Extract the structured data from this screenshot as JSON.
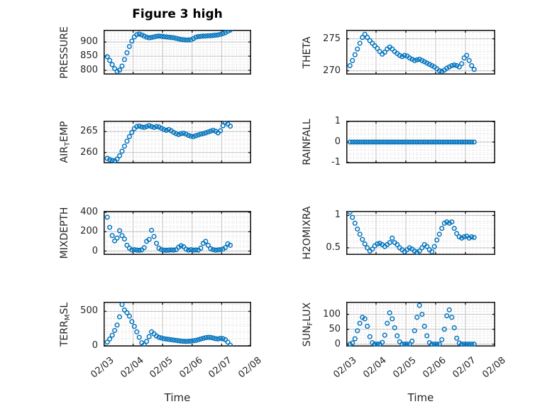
{
  "title": "Figure 3 high",
  "colors": {
    "marker_blue": "#0072BD",
    "axis_frame": "#1a1a1a",
    "text": "#262626",
    "grid_major": "#c2c2c2",
    "grid_minor": "#d4d4d4",
    "background": "#ffffff"
  },
  "chart_data": {
    "type": "scatter",
    "marker": "open-circle",
    "grid": "major-solid-plus-minor-dotted",
    "layout": "4x2-subplot-grid-shared-time-axis",
    "x_axis": {
      "label": "Time",
      "lim_days": [
        0,
        5
      ],
      "tick_days": [
        0,
        1,
        2,
        3,
        4,
        5
      ],
      "tick_labels": [
        "02/03",
        "02/04",
        "02/05",
        "02/06",
        "02/07",
        "02/08"
      ],
      "minor_step_days": 0.125,
      "tick_label_rotation_deg": -40
    },
    "x_days": [
      0.125,
      0.208,
      0.292,
      0.375,
      0.458,
      0.542,
      0.625,
      0.708,
      0.792,
      0.875,
      0.958,
      1.042,
      1.125,
      1.208,
      1.292,
      1.375,
      1.458,
      1.542,
      1.625,
      1.708,
      1.792,
      1.875,
      1.958,
      2.042,
      2.125,
      2.208,
      2.292,
      2.375,
      2.458,
      2.542,
      2.625,
      2.708,
      2.792,
      2.875,
      2.958,
      3.042,
      3.125,
      3.208,
      3.292,
      3.375,
      3.458,
      3.542,
      3.625,
      3.708,
      3.792,
      3.875,
      3.958,
      4.042,
      4.125,
      4.208,
      4.292
    ],
    "plots": [
      {
        "name": "PRESSURE",
        "ylabel": {
          "pre": "PRESSURE",
          "sub": "",
          "post": ""
        },
        "ylim": [
          785,
          943
        ],
        "yticks": [
          800,
          850,
          900
        ],
        "ytick_labels": [
          "800",
          "850",
          "900"
        ],
        "yminor_step": 10,
        "values": [
          848,
          835,
          820,
          806,
          796,
          801,
          815,
          838,
          862,
          884,
          903,
          918,
          926,
          928,
          925,
          921,
          917,
          915,
          916,
          918,
          920,
          921,
          920,
          919,
          918,
          917,
          916,
          915,
          913,
          911,
          909,
          908,
          907,
          907,
          908,
          912,
          917,
          919,
          920,
          921,
          921,
          922,
          922,
          923,
          924,
          925,
          927,
          930,
          933,
          938,
          942
        ]
      },
      {
        "name": "THETA",
        "ylabel": {
          "pre": "THETA",
          "sub": "",
          "post": ""
        },
        "ylim": [
          269.4,
          276.4
        ],
        "yticks": [
          270,
          275
        ],
        "ytick_labels": [
          "270",
          "275"
        ],
        "yminor_step": 1,
        "values": [
          270.8,
          271.6,
          272.5,
          273.4,
          274.3,
          275.2,
          275.7,
          275.2,
          274.7,
          274.3,
          273.9,
          273.5,
          273.0,
          272.6,
          272.9,
          273.4,
          273.7,
          273.4,
          273.0,
          272.7,
          272.4,
          272.2,
          272.4,
          272.3,
          272.0,
          271.8,
          271.6,
          271.7,
          271.8,
          271.6,
          271.4,
          271.2,
          271.0,
          270.8,
          270.6,
          270.3,
          270.0,
          269.9,
          270.1,
          270.4,
          270.6,
          270.8,
          270.9,
          270.8,
          270.6,
          271.1,
          272.0,
          272.4,
          271.6,
          270.8,
          270.2
        ]
      },
      {
        "name": "AIR_TEMP",
        "ylabel": {
          "pre": "AIR",
          "sub": "T",
          "post": "EMP"
        },
        "ylim": [
          257.4,
          267.6
        ],
        "yticks": [
          260,
          265
        ],
        "ytick_labels": [
          "260",
          "265"
        ],
        "yminor_step": 1,
        "values": [
          258.6,
          258.3,
          258.1,
          258.0,
          258.4,
          259.2,
          260.3,
          261.5,
          262.7,
          263.8,
          264.8,
          265.7,
          266.2,
          266.3,
          266.1,
          266.0,
          266.2,
          266.4,
          266.2,
          266.0,
          266.2,
          266.1,
          265.8,
          265.5,
          265.3,
          265.5,
          265.2,
          264.8,
          264.5,
          264.3,
          264.5,
          264.6,
          264.4,
          264.1,
          263.9,
          263.8,
          264.0,
          264.2,
          264.4,
          264.5,
          264.7,
          264.9,
          265.1,
          265.3,
          265.1,
          264.7,
          265.2,
          266.4,
          267.2,
          266.8,
          266.3
        ]
      },
      {
        "name": "RAINFALL",
        "ylabel": {
          "pre": "RAINFALL",
          "sub": "",
          "post": ""
        },
        "ylim": [
          -1.05,
          1.05
        ],
        "yticks": [
          -1,
          0,
          1
        ],
        "ytick_labels": [
          "-1",
          "0",
          "1"
        ],
        "yminor_step": 0.2,
        "values": [
          0,
          0,
          0,
          0,
          0,
          0,
          0,
          0,
          0,
          0,
          0,
          0,
          0,
          0,
          0,
          0,
          0,
          0,
          0,
          0,
          0,
          0,
          0,
          0,
          0,
          0,
          0,
          0,
          0,
          0,
          0,
          0,
          0,
          0,
          0,
          0,
          0,
          0,
          0,
          0,
          0,
          0,
          0,
          0,
          0,
          0,
          0,
          0,
          0,
          0,
          0
        ]
      },
      {
        "name": "MIXDEPTH",
        "ylabel": {
          "pre": "MIXDEPTH",
          "sub": "",
          "post": ""
        },
        "ylim": [
          -40,
          415
        ],
        "yticks": [
          0,
          200,
          400
        ],
        "ytick_labels": [
          "0",
          "200",
          "400"
        ],
        "yminor_step": 50,
        "values": [
          350,
          245,
          160,
          105,
          135,
          210,
          160,
          125,
          60,
          30,
          12,
          15,
          10,
          8,
          12,
          35,
          100,
          120,
          215,
          150,
          80,
          30,
          15,
          10,
          8,
          10,
          12,
          10,
          15,
          40,
          55,
          45,
          20,
          10,
          15,
          10,
          12,
          10,
          30,
          80,
          100,
          60,
          25,
          15,
          10,
          12,
          15,
          20,
          35,
          75,
          60
        ]
      },
      {
        "name": "H2OMIXRA",
        "ylabel": {
          "pre": "H2OMIXRA",
          "sub": "",
          "post": ""
        },
        "ylim": [
          0.39,
          1.07
        ],
        "yticks": [
          0.5,
          1
        ],
        "ytick_labels": [
          "0.5",
          "1"
        ],
        "yminor_step": 0.1,
        "values": [
          1.05,
          0.97,
          0.88,
          0.79,
          0.71,
          0.63,
          0.56,
          0.5,
          0.45,
          0.48,
          0.53,
          0.56,
          0.57,
          0.55,
          0.52,
          0.55,
          0.58,
          0.65,
          0.58,
          0.55,
          0.5,
          0.47,
          0.44,
          0.47,
          0.5,
          0.48,
          0.45,
          0.43,
          0.45,
          0.5,
          0.55,
          0.52,
          0.47,
          0.44,
          0.52,
          0.62,
          0.71,
          0.8,
          0.88,
          0.9,
          0.88,
          0.9,
          0.8,
          0.72,
          0.67,
          0.65,
          0.67,
          0.68,
          0.65,
          0.67,
          0.66
        ]
      },
      {
        "name": "TERR_MSL",
        "ylabel": {
          "pre": "TERR",
          "sub": "M",
          "post": "SL"
        },
        "ylim": [
          -15,
          640
        ],
        "yticks": [
          0,
          500
        ],
        "ytick_labels": [
          "0",
          "500"
        ],
        "yminor_step": 100,
        "values": [
          50,
          95,
          150,
          220,
          300,
          420,
          600,
          520,
          480,
          430,
          350,
          280,
          200,
          120,
          40,
          10,
          60,
          130,
          200,
          170,
          140,
          120,
          110,
          100,
          95,
          90,
          85,
          80,
          75,
          70,
          65,
          62,
          60,
          62,
          65,
          70,
          75,
          85,
          95,
          105,
          115,
          120,
          118,
          110,
          100,
          95,
          105,
          100,
          85,
          50,
          5
        ]
      },
      {
        "name": "SUN_FLUX",
        "ylabel": {
          "pre": "SUN",
          "sub": "F",
          "post": "LUX"
        },
        "ylim": [
          -8,
          142
        ],
        "yticks": [
          0,
          50,
          100
        ],
        "ytick_labels": [
          "0",
          "50",
          "100"
        ],
        "yminor_step": 10,
        "values": [
          0,
          4,
          18,
          45,
          70,
          90,
          85,
          60,
          25,
          5,
          0,
          0,
          0,
          6,
          30,
          70,
          105,
          85,
          55,
          28,
          8,
          0,
          0,
          0,
          0,
          10,
          45,
          90,
          130,
          100,
          60,
          28,
          5,
          0,
          0,
          0,
          0,
          15,
          50,
          95,
          115,
          90,
          55,
          20,
          4,
          0,
          0,
          0,
          0,
          0,
          0
        ]
      }
    ]
  }
}
